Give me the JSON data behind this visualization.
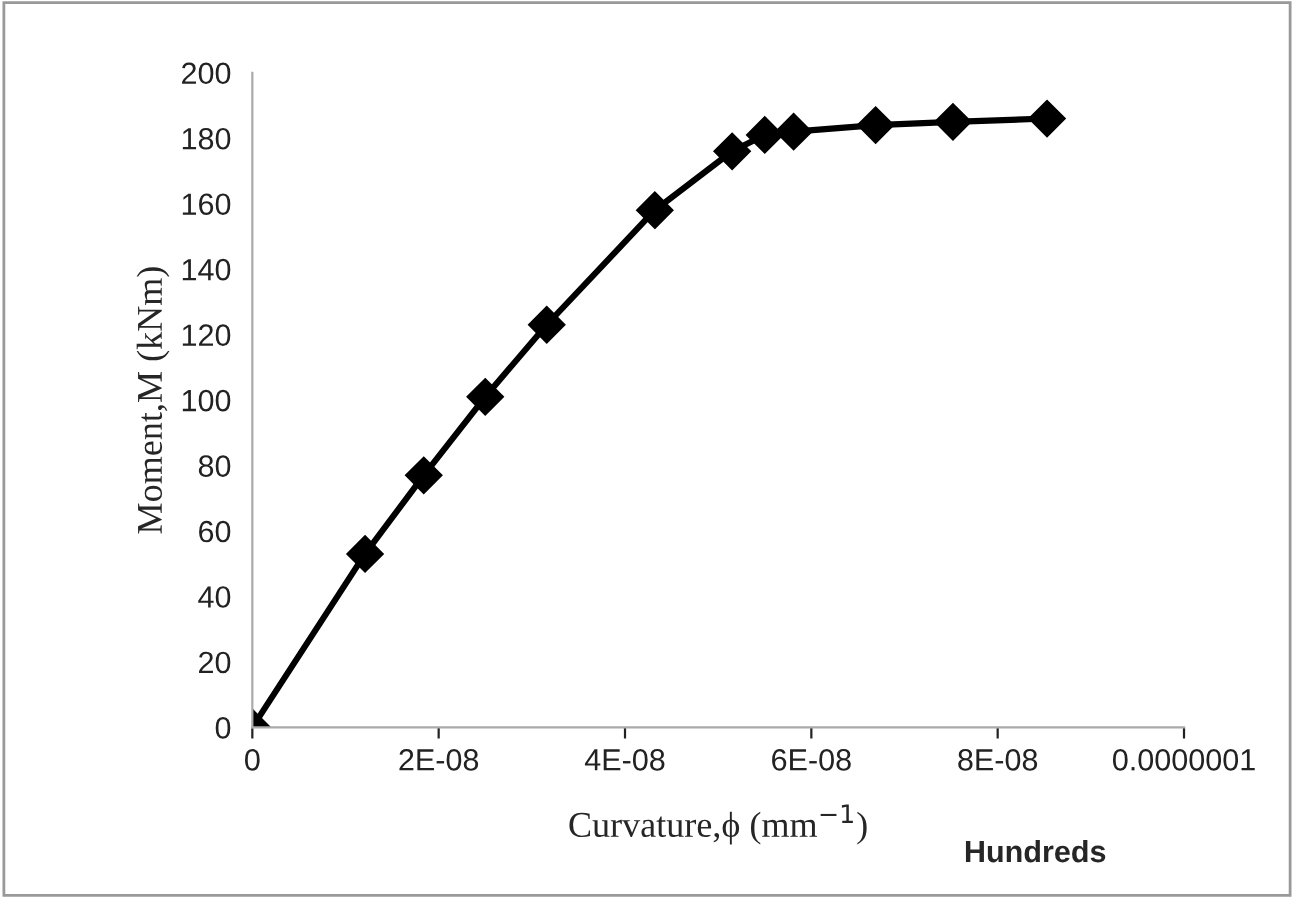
{
  "chart_data": {
    "type": "line",
    "xlabel": "Curvature,ϕ (mm$^{−1}$)",
    "ylabel": "Moment,M (kNm)",
    "annotations": [
      "Hundreds"
    ],
    "x": [
      0,
      1.21e-08,
      1.84e-08,
      2.5e-08,
      3.16e-08,
      4.32e-08,
      5.15e-08,
      5.5e-08,
      5.81e-08,
      6.69e-08,
      7.52e-08,
      8.53e-08
    ],
    "series": [
      {
        "color": "#000000",
        "values": [
          0,
          53,
          77,
          101,
          123,
          158,
          176,
          181,
          182,
          184,
          185,
          186
        ]
      }
    ],
    "xlim": [
      0,
      1e-07
    ],
    "xticks": [
      {
        "value": 0,
        "label": "0"
      },
      {
        "value": 2e-08,
        "label": "2E-08"
      },
      {
        "value": 4e-08,
        "label": "4E-08"
      },
      {
        "value": 6e-08,
        "label": "6E-08"
      },
      {
        "value": 8e-08,
        "label": "8E-08"
      },
      {
        "value": 1e-07,
        "label": "0.0000001"
      }
    ],
    "ylim": [
      0,
      200
    ],
    "yticks": [
      0,
      20,
      40,
      60,
      80,
      100,
      120,
      140,
      160,
      180,
      200
    ],
    "marker": "diamond",
    "line_style": "solid",
    "grid": false,
    "legend": false
  }
}
